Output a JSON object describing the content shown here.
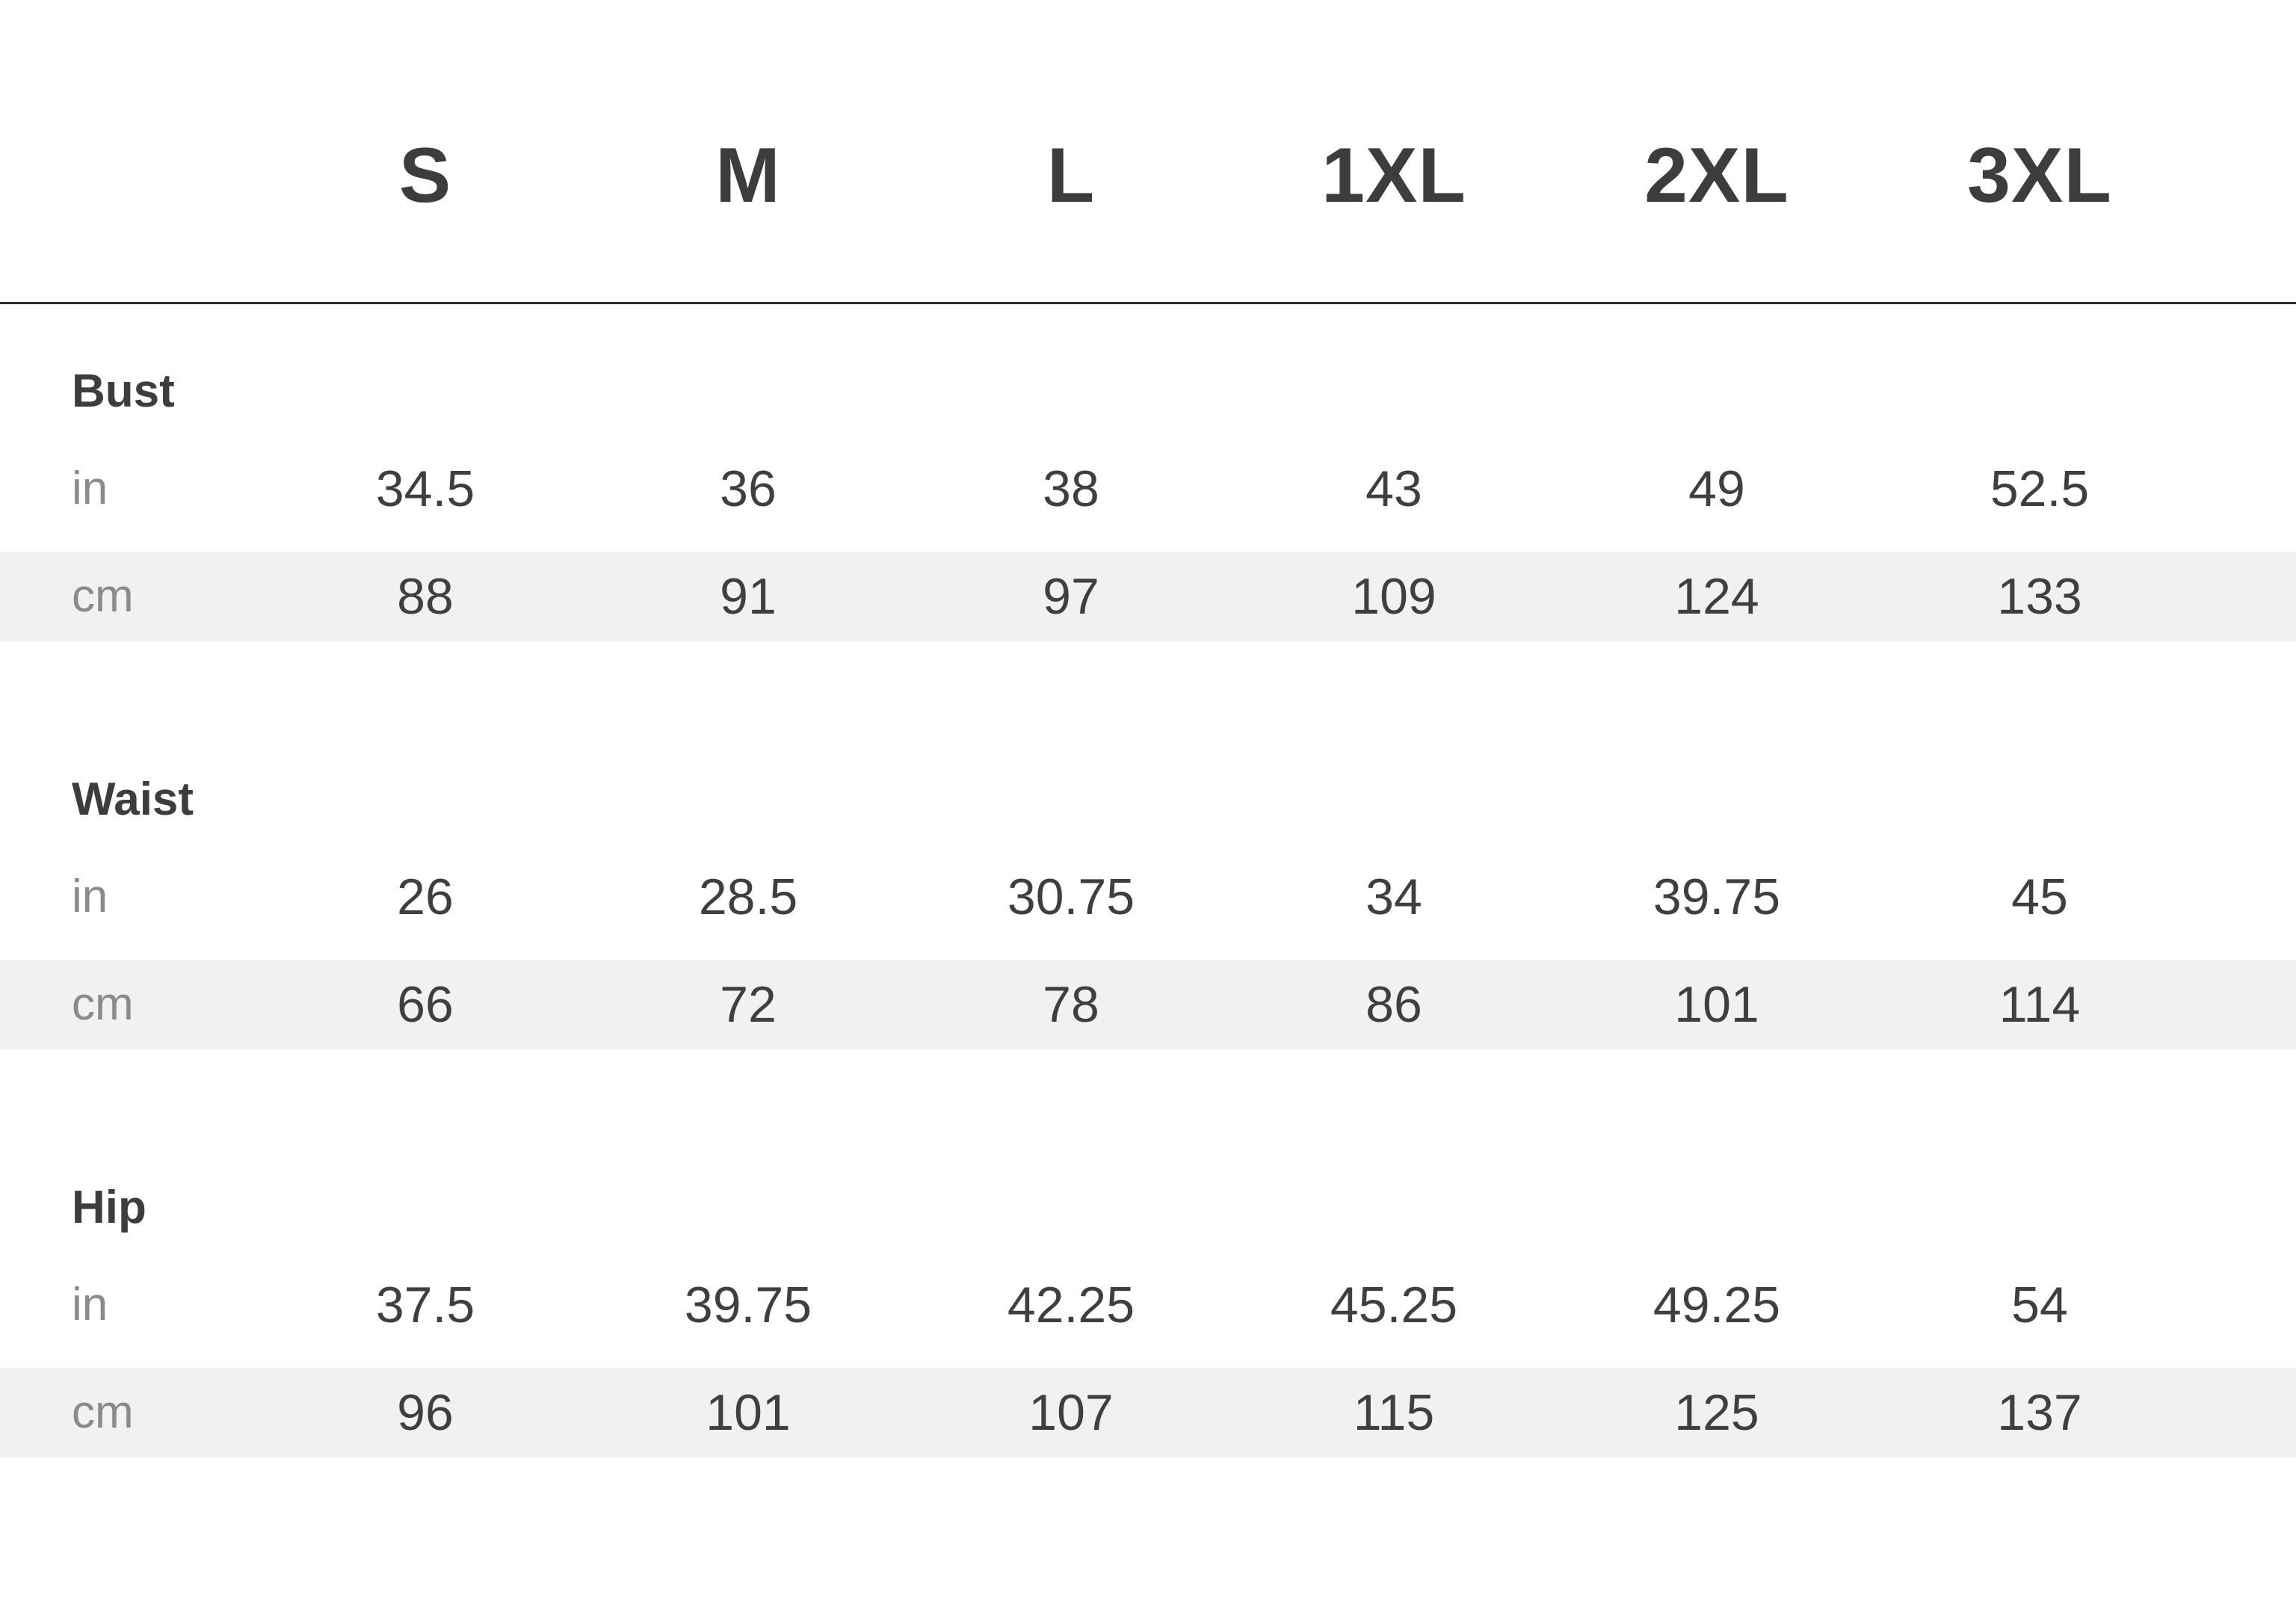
{
  "sizes": [
    "S",
    "M",
    "L",
    "1XL",
    "2XL",
    "3XL"
  ],
  "units": {
    "in": "in",
    "cm": "cm"
  },
  "sections": [
    {
      "title": "Bust",
      "in": [
        "34.5",
        "36",
        "38",
        "43",
        "49",
        "52.5"
      ],
      "cm": [
        "88",
        "91",
        "97",
        "109",
        "124",
        "133"
      ]
    },
    {
      "title": "Waist",
      "in": [
        "26",
        "28.5",
        "30.75",
        "34",
        "39.75",
        "45"
      ],
      "cm": [
        "66",
        "72",
        "78",
        "86",
        "101",
        "114"
      ]
    },
    {
      "title": "Hip",
      "in": [
        "37.5",
        "39.75",
        "42.25",
        "45.25",
        "49.25",
        "54"
      ],
      "cm": [
        "96",
        "101",
        "107",
        "115",
        "125",
        "137"
      ]
    }
  ],
  "colors": {
    "text": "#3f3f3f",
    "unit_text": "#8a8a8a",
    "cm_row_bg": "#f1f1f1",
    "rule": "#2e2e2e"
  }
}
